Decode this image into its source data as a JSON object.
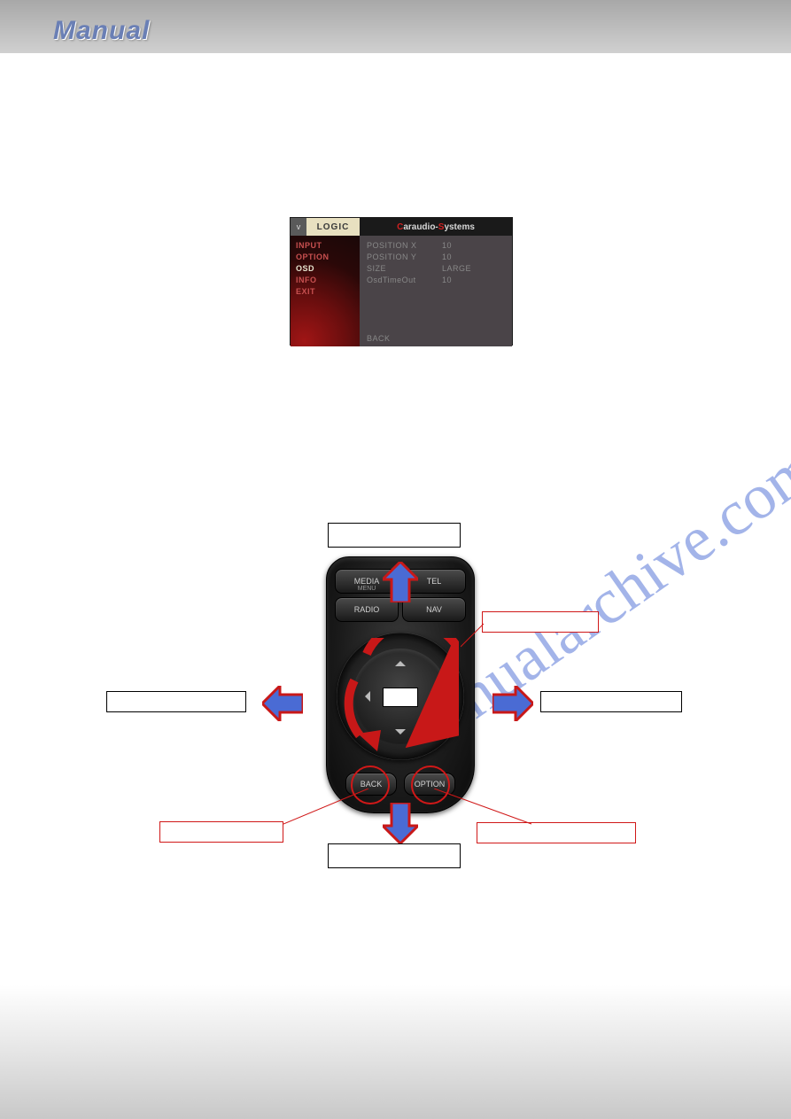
{
  "header": {
    "title": "Manual"
  },
  "osd": {
    "logo_v": "v",
    "logo_logic": "LOGIC",
    "brand_c1": "C",
    "brand_rest1": "araudio-",
    "brand_c2": "S",
    "brand_rest2": "ystems",
    "left_items": [
      "INPUT",
      "OPTION",
      "OSD",
      "INFO",
      "EXIT"
    ],
    "selected_index": 2,
    "rows": [
      {
        "k": "POSITION X",
        "v": "10"
      },
      {
        "k": "POSITION Y",
        "v": "10"
      },
      {
        "k": "SIZE",
        "v": "LARGE"
      },
      {
        "k": "OsdTimeOut",
        "v": "10"
      }
    ],
    "back_label": "BACK",
    "colors": {
      "panel_bg": "#3a3438",
      "left_grad_inner": "#a01515",
      "left_grad_outer": "#1a0808",
      "item_color": "#c85050",
      "selected_color": "#e5e5d0",
      "right_bg": "#4a4448",
      "row_color": "#888888",
      "brand_red": "#d02020",
      "brand_white": "#d8d8d8"
    }
  },
  "watermark": "manualarchive.com",
  "remote": {
    "buttons": {
      "media": "MEDIA",
      "media_sub": "MENU",
      "tel": "TEL",
      "radio": "RADIO",
      "nav": "NAV",
      "back": "BACK",
      "option": "OPTION"
    },
    "arrow_color_red": "#c81818",
    "arrow_color_blue": "#4a6bd4",
    "circle_color": "#d01818",
    "body_color": "#1a1a1a"
  },
  "labels": {
    "top": "",
    "rotate": "",
    "left": "",
    "right": "",
    "back_lbl": "",
    "option_lbl": "",
    "bottom": ""
  }
}
